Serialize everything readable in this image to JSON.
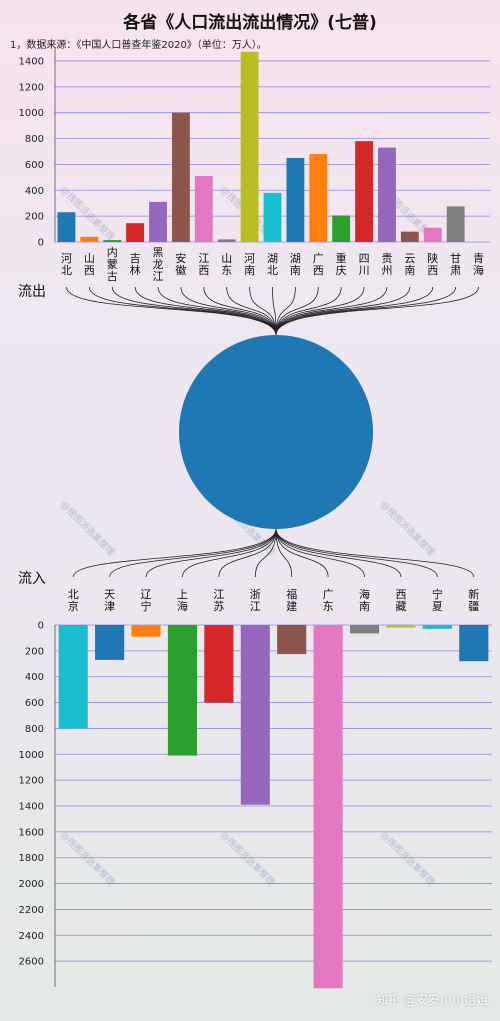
{
  "title": "各省《人口流出流出情况》(七普)",
  "subtitle": "1，数据来源：《中国人口普查年鉴2020》（单位：万人）。",
  "credit": "知乎 @安安小小姐姐",
  "chart_data": [
    {
      "type": "bar",
      "section_label": "流出",
      "categories": [
        "河北",
        "山西",
        "内蒙古",
        "吉林",
        "黑龙江",
        "安徽",
        "江西",
        "山东",
        "河南",
        "湖北",
        "湖南",
        "广西",
        "重庆",
        "四川",
        "贵州",
        "云南",
        "陕西",
        "甘肃",
        "青海"
      ],
      "values": [
        230,
        40,
        15,
        145,
        310,
        1000,
        510,
        20,
        1470,
        380,
        650,
        680,
        205,
        780,
        730,
        80,
        110,
        275,
        0
      ],
      "colors": [
        "#1f77b4",
        "#ff7f0e",
        "#2ca02c",
        "#d62728",
        "#9467bd",
        "#8c564b",
        "#e377c2",
        "#7f7f7f",
        "#bcbd22",
        "#17becf",
        "#1f77b4",
        "#ff7f0e",
        "#2ca02c",
        "#d62728",
        "#9467bd",
        "#8c564b",
        "#e377c2",
        "#7f7f7f",
        "#bcbd22"
      ],
      "ylim": [
        0,
        1500
      ],
      "yticks": [
        0,
        200,
        400,
        600,
        800,
        1000,
        1200,
        1400
      ],
      "grid": true
    },
    {
      "type": "bar",
      "section_label": "流入",
      "categories": [
        "北京",
        "天津",
        "辽宁",
        "上海",
        "江苏",
        "浙江",
        "福建",
        "广东",
        "海南",
        "西藏",
        "宁夏",
        "新疆"
      ],
      "values": [
        800,
        270,
        90,
        1010,
        600,
        1390,
        225,
        2810,
        65,
        20,
        30,
        280
      ],
      "colors": [
        "#17becf",
        "#1f77b4",
        "#ff7f0e",
        "#2ca02c",
        "#d62728",
        "#9467bd",
        "#8c564b",
        "#e377c2",
        "#7f7f7f",
        "#bcbd22",
        "#17becf",
        "#1f77b4"
      ],
      "ylim": [
        0,
        2800
      ],
      "yticks": [
        0,
        200,
        400,
        600,
        800,
        1000,
        1200,
        1400,
        1600,
        1800,
        2000,
        2200,
        2400,
        2600
      ],
      "inverted": true,
      "grid": true
    }
  ],
  "watermarks": [
    "@搜图派选集整理",
    "@搜图派选集整理",
    "@搜图派选集整理",
    "@搜图派选集整理",
    "@搜图派选集整理",
    "@搜图派选集整理",
    "@搜图派选集整理",
    "@搜图派选集整理",
    "@搜图派选集整理"
  ],
  "colors": {
    "circle": "#1f77b4",
    "grid": "#8c88e0"
  }
}
